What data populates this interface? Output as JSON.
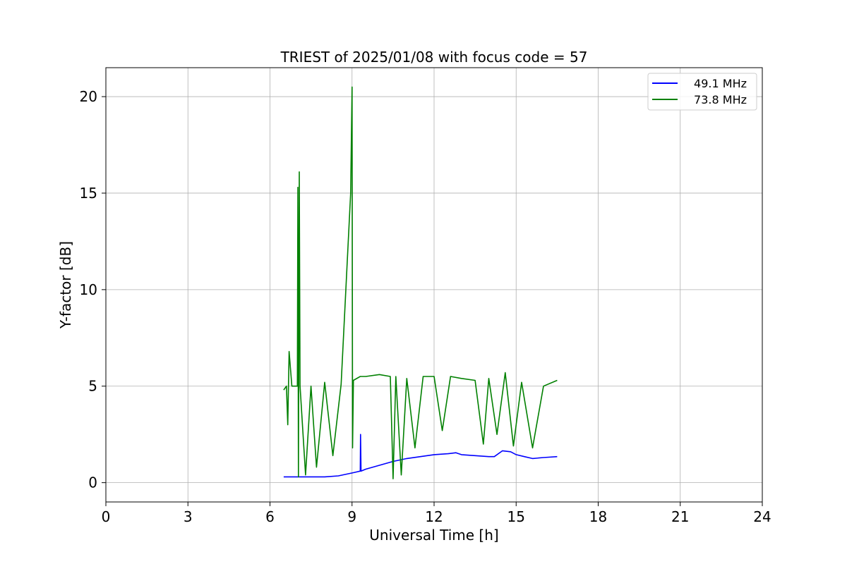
{
  "chart_data": {
    "type": "line",
    "title": "TRIEST of 2025/01/08 with focus code = 57",
    "xlabel": "Universal Time [h]",
    "ylabel": "Y-factor [dB]",
    "xlim": [
      0,
      24
    ],
    "ylim": [
      -1,
      21.5
    ],
    "xticks": [
      0,
      3,
      6,
      9,
      12,
      15,
      18,
      21,
      24
    ],
    "yticks": [
      0,
      5,
      10,
      15,
      20
    ],
    "grid": true,
    "legend_position": "top-right",
    "series": [
      {
        "name": "49.1 MHz",
        "color": "#0000ff",
        "x": [
          6.5,
          7.0,
          7.5,
          8.0,
          8.5,
          9.0,
          9.3,
          9.31,
          9.33,
          9.5,
          10.0,
          10.5,
          11.0,
          11.5,
          12.0,
          12.5,
          12.8,
          13.0,
          13.5,
          14.0,
          14.2,
          14.5,
          14.8,
          15.0,
          15.3,
          15.6,
          16.0,
          16.5
        ],
        "y": [
          0.3,
          0.3,
          0.3,
          0.3,
          0.35,
          0.5,
          0.6,
          2.5,
          0.6,
          0.7,
          0.9,
          1.1,
          1.25,
          1.35,
          1.45,
          1.5,
          1.55,
          1.45,
          1.4,
          1.35,
          1.35,
          1.65,
          1.6,
          1.45,
          1.35,
          1.25,
          1.3,
          1.35
        ]
      },
      {
        "name": "73.8 MHz",
        "color": "#008000",
        "x": [
          6.5,
          6.6,
          6.65,
          6.7,
          6.8,
          7.0,
          7.02,
          7.04,
          7.07,
          7.1,
          7.3,
          7.5,
          7.7,
          8.0,
          8.3,
          8.6,
          8.95,
          9.0,
          9.02,
          9.05,
          9.3,
          9.5,
          10.0,
          10.4,
          10.5,
          10.6,
          10.8,
          11.0,
          11.3,
          11.6,
          12.0,
          12.3,
          12.6,
          13.0,
          13.5,
          13.8,
          14.0,
          14.3,
          14.6,
          14.9,
          15.2,
          15.6,
          16.0,
          16.5
        ],
        "y": [
          4.8,
          5.0,
          3.0,
          6.8,
          5.0,
          5.0,
          15.3,
          0.3,
          16.1,
          5.0,
          0.4,
          5.0,
          0.8,
          5.2,
          1.4,
          5.1,
          15.0,
          20.5,
          1.8,
          5.3,
          5.5,
          5.5,
          5.6,
          5.5,
          0.2,
          5.5,
          0.4,
          5.4,
          1.8,
          5.5,
          5.5,
          2.7,
          5.5,
          5.4,
          5.3,
          2.0,
          5.4,
          2.5,
          5.7,
          1.9,
          5.2,
          1.8,
          5.0,
          5.3
        ]
      }
    ]
  }
}
